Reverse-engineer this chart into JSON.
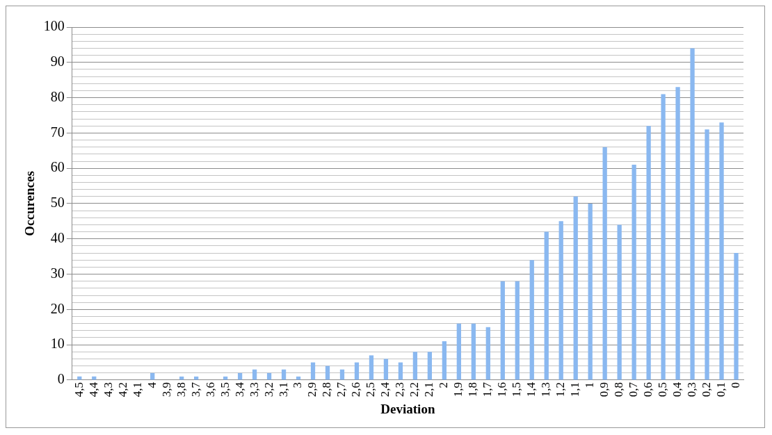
{
  "chart_data": {
    "type": "bar",
    "xlabel": "Deviation",
    "ylabel": "Occurences",
    "categories": [
      "4,5",
      "4,4",
      "4,3",
      "4,2",
      "4,1",
      "4",
      "3,9",
      "3,8",
      "3,7",
      "3,6",
      "3,5",
      "3,4",
      "3,3",
      "3,2",
      "3,1",
      "3",
      "2,9",
      "2,8",
      "2,7",
      "2,6",
      "2,5",
      "2,4",
      "2,3",
      "2,2",
      "2,1",
      "2",
      "1,9",
      "1,8",
      "1,7",
      "1,6",
      "1,5",
      "1,4",
      "1,3",
      "1,2",
      "1,1",
      "1",
      "0,9",
      "0,8",
      "0,7",
      "0,6",
      "0,5",
      "0,4",
      "0,3",
      "0,2",
      "0,1",
      "0"
    ],
    "values": [
      1,
      1,
      0,
      0,
      0,
      2,
      0,
      1,
      1,
      0,
      1,
      2,
      3,
      2,
      3,
      1,
      5,
      4,
      3,
      5,
      7,
      6,
      5,
      8,
      8,
      11,
      16,
      16,
      15,
      28,
      28,
      34,
      42,
      45,
      52,
      50,
      66,
      44,
      61,
      72,
      81,
      83,
      94,
      71,
      73,
      36
    ],
    "color": "#8ab8f0",
    "ylim": [
      0,
      100
    ],
    "yticks": [
      0,
      {
        "value": 2,
        "label": null
      },
      {
        "value": 4,
        "label": null
      },
      {
        "value": 6,
        "label": null
      },
      {
        "value": 8,
        "label": null
      },
      10,
      {
        "value": 12,
        "label": null
      },
      {
        "value": 14,
        "label": null
      },
      {
        "value": 16,
        "label": null
      },
      {
        "value": 18,
        "label": null
      },
      20,
      {
        "value": 22,
        "label": null
      },
      {
        "value": 24,
        "label": null
      },
      {
        "value": 26,
        "label": null
      },
      {
        "value": 28,
        "label": null
      },
      30,
      {
        "value": 32,
        "label": null
      },
      {
        "value": 34,
        "label": null
      },
      {
        "value": 36,
        "label": null
      },
      {
        "value": 38,
        "label": null
      },
      40,
      {
        "value": 42,
        "label": null
      },
      {
        "value": 44,
        "label": null
      },
      {
        "value": 46,
        "label": null
      },
      {
        "value": 48,
        "label": null
      },
      50,
      {
        "value": 52,
        "label": null
      },
      {
        "value": 54,
        "label": null
      },
      {
        "value": 56,
        "label": null
      },
      {
        "value": 58,
        "label": null
      },
      60,
      {
        "value": 62,
        "label": null
      },
      {
        "value": 64,
        "label": null
      },
      {
        "value": 66,
        "label": null
      },
      {
        "value": 68,
        "label": null
      },
      70,
      {
        "value": 72,
        "label": null
      },
      {
        "value": 74,
        "label": null
      },
      {
        "value": 76,
        "label": null
      },
      {
        "value": 78,
        "label": null
      },
      80,
      {
        "value": 82,
        "label": null
      },
      {
        "value": 84,
        "label": null
      },
      {
        "value": 86,
        "label": null
      },
      {
        "value": 88,
        "label": null
      },
      90,
      {
        "value": 92,
        "label": null
      },
      {
        "value": 94,
        "label": null
      },
      {
        "value": 96,
        "label": null
      },
      {
        "value": 98,
        "label": null
      },
      100
    ],
    "grid": "y"
  }
}
